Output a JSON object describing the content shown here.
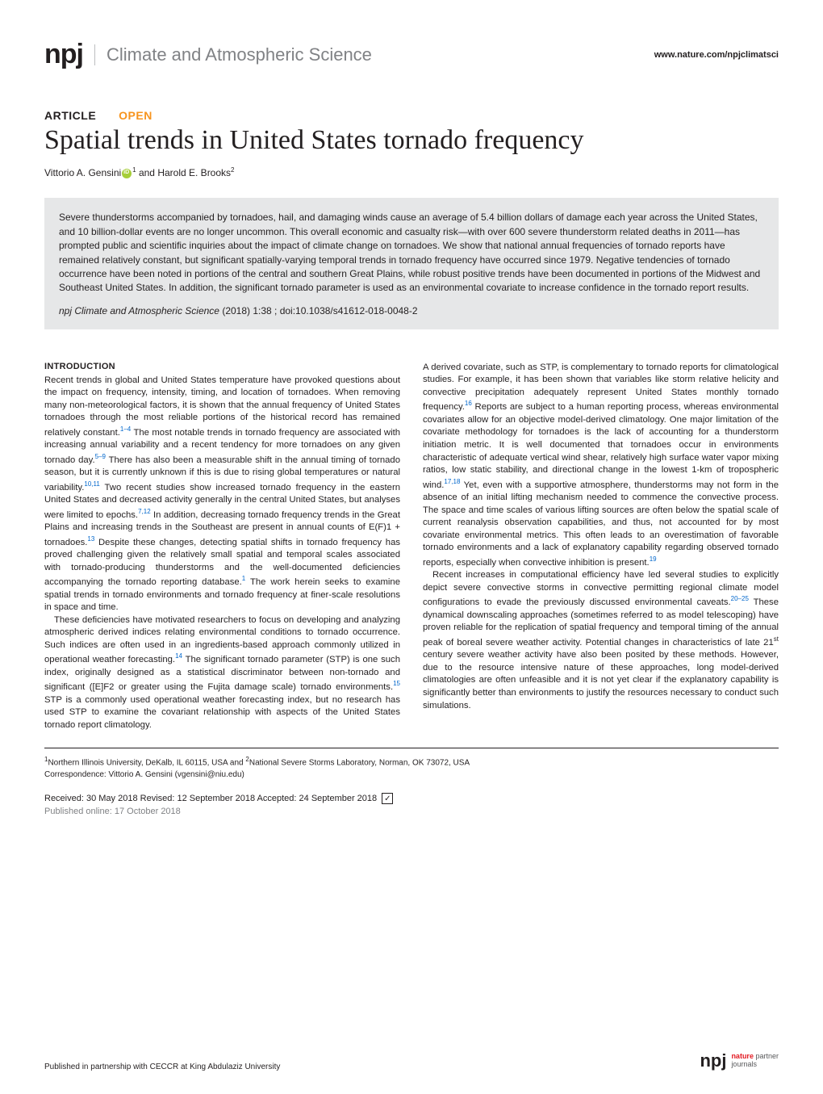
{
  "header": {
    "logo_text": "npj",
    "journal_name": "Climate and Atmospheric Science",
    "site_url": "www.nature.com/npjclimatsci"
  },
  "article": {
    "type_label": "ARTICLE",
    "open_label": "OPEN",
    "title": "Spatial trends in United States tornado frequency",
    "author1_name": "Vittorio A. Gensini",
    "author1_affil": "1",
    "author_sep": " and ",
    "author2_name": "Harold E. Brooks",
    "author2_affil": "2"
  },
  "abstract": {
    "text": "Severe thunderstorms accompanied by tornadoes, hail, and damaging winds cause an average of 5.4 billion dollars of damage each year across the United States, and 10 billion-dollar events are no longer uncommon. This overall economic and casualty risk—with over 600 severe thunderstorm related deaths in 2011—has prompted public and scientific inquiries about the impact of climate change on tornadoes. We show that national annual frequencies of tornado reports have remained relatively constant, but significant spatially-varying temporal trends in tornado frequency have occurred since 1979. Negative tendencies of tornado occurrence have been noted in portions of the central and southern Great Plains, while robust positive trends have been documented in portions of the Midwest and Southeast United States. In addition, the significant tornado parameter is used as an environmental covariate to increase confidence in the tornado report results.",
    "citation_journal": "npj Climate and Atmospheric Science",
    "citation_rest": "    (2018) 1:38 ; doi:10.1038/s41612-018-0048-2"
  },
  "sections": {
    "intro_heading": "INTRODUCTION",
    "col1_p1_a": "Recent trends in global and United States temperature have provoked questions about the impact on frequency, intensity, timing, and location of tornadoes. When removing many non-meteorological factors, it is shown that the annual frequency of United States tornadoes through the most reliable portions of the historical record has remained relatively constant.",
    "col1_p1_ref1": "1–4",
    "col1_p1_b": " The most notable trends in tornado frequency are associated with increasing annual variability and a recent tendency for more tornadoes on any given tornado day.",
    "col1_p1_ref2": "5–9",
    "col1_p1_c": " There has also been a measurable shift in the annual timing of tornado season, but it is currently unknown if this is due to rising global temperatures or natural variability.",
    "col1_p1_ref3": "10,11",
    "col1_p1_d": " Two recent studies show increased tornado frequency in the eastern United States and decreased activity generally in the central United States, but analyses were limited to epochs.",
    "col1_p1_ref4": "7,12",
    "col1_p1_e": " In addition, decreasing tornado frequency trends in the Great Plains and increasing trends in the Southeast are present in annual counts of E(F)1 + tornadoes.",
    "col1_p1_ref5": "13",
    "col1_p1_f": " Despite these changes, detecting spatial shifts in tornado frequency has proved challenging given the relatively small spatial and temporal scales associated with tornado-producing thunderstorms and the well-documented deficiencies accompanying the tornado reporting database.",
    "col1_p1_ref6": "1",
    "col1_p1_g": " The work herein seeks to examine spatial trends in tornado environments and tornado frequency at finer-scale resolutions in space and time.",
    "col1_p2_a": "These deficiencies have motivated researchers to focus on developing and analyzing atmospheric derived indices relating environmental conditions to tornado occurrence. Such indices are often used in an ingredients-based approach commonly utilized in operational weather forecasting.",
    "col1_p2_ref1": "14",
    "col1_p2_b": " The significant tornado parameter (STP) is one such index, originally designed as a statistical discriminator between non-tornado and significant ([E]F2 or greater using the Fujita damage scale) tornado environments.",
    "col1_p2_ref2": "15",
    "col1_p2_c": " STP is a commonly used operational weather forecasting index, but no research has used STP to examine the covariant relationship with aspects of the United States tornado report climatology.",
    "col2_p1_a": "A derived covariate, such as STP, is complementary to tornado reports for climatological studies. For example, it has been shown that variables like storm relative helicity and convective precipitation adequately represent United States monthly tornado frequency.",
    "col2_p1_ref1": "16",
    "col2_p1_b": " Reports are subject to a human reporting process, whereas environmental covariates allow for an objective model-derived climatology. One major limitation of the covariate methodology for tornadoes is the lack of accounting for a thunderstorm initiation metric. It is well documented that tornadoes occur in environments characteristic of adequate vertical wind shear, relatively high surface water vapor mixing ratios, low static stability, and directional change in the lowest 1-km of tropospheric wind.",
    "col2_p1_ref2": "17,18",
    "col2_p1_c": " Yet, even with a supportive atmosphere, thunderstorms may not form in the absence of an initial lifting mechanism needed to commence the convective process. The space and time scales of various lifting sources are often below the spatial scale of current reanalysis observation capabilities, and thus, not accounted for by most covariate environmental metrics. This often leads to an overestimation of favorable tornado environments and a lack of explanatory capability regarding observed tornado reports, especially when convective inhibition is present.",
    "col2_p1_ref3": "19",
    "col2_p2_a": "Recent increases in computational efficiency have led several studies to explicitly depict severe convective storms in convective permitting regional climate model configurations to evade the previously discussed environmental caveats.",
    "col2_p2_ref1": "20–25",
    "col2_p2_b": " These dynamical downscaling approaches (sometimes referred to as model telescoping) have proven reliable for the replication of spatial frequency and temporal timing of the annual peak of boreal severe weather activity. Potential changes in characteristics of late 21",
    "col2_p2_sup": "st",
    "col2_p2_c": " century severe weather activity have also been posited by these methods. However, due to the resource intensive nature of these approaches, long model-derived climatologies are often unfeasible and it is not yet clear if the explanatory capability is significantly better than environments to justify the resources necessary to conduct such simulations."
  },
  "affiliations": {
    "text": "Northern Illinois University, DeKalb, IL 60115, USA and ",
    "sup1": "1",
    "text2": "National Severe Storms Laboratory, Norman, OK 73072, USA",
    "sup2": "2",
    "correspondence": "Correspondence: Vittorio A. Gensini (vgensini@niu.edu)"
  },
  "dates": {
    "line1": "Received: 30 May 2018 Revised: 12 September 2018 Accepted: 24 September 2018",
    "line2": "Published online: 17 October 2018"
  },
  "footer": {
    "partnership": "Published in partnership with CECCR at King Abdulaziz University",
    "npj_small": "npj",
    "nature": "nature",
    "partner_text": "partner\njournals"
  },
  "colors": {
    "text": "#231f20",
    "muted": "#808285",
    "open": "#f7941d",
    "ref": "#0066cc",
    "abstract_bg": "#e6e7e8",
    "orcid": "#a6ce39",
    "nature_red": "#e31b23"
  }
}
